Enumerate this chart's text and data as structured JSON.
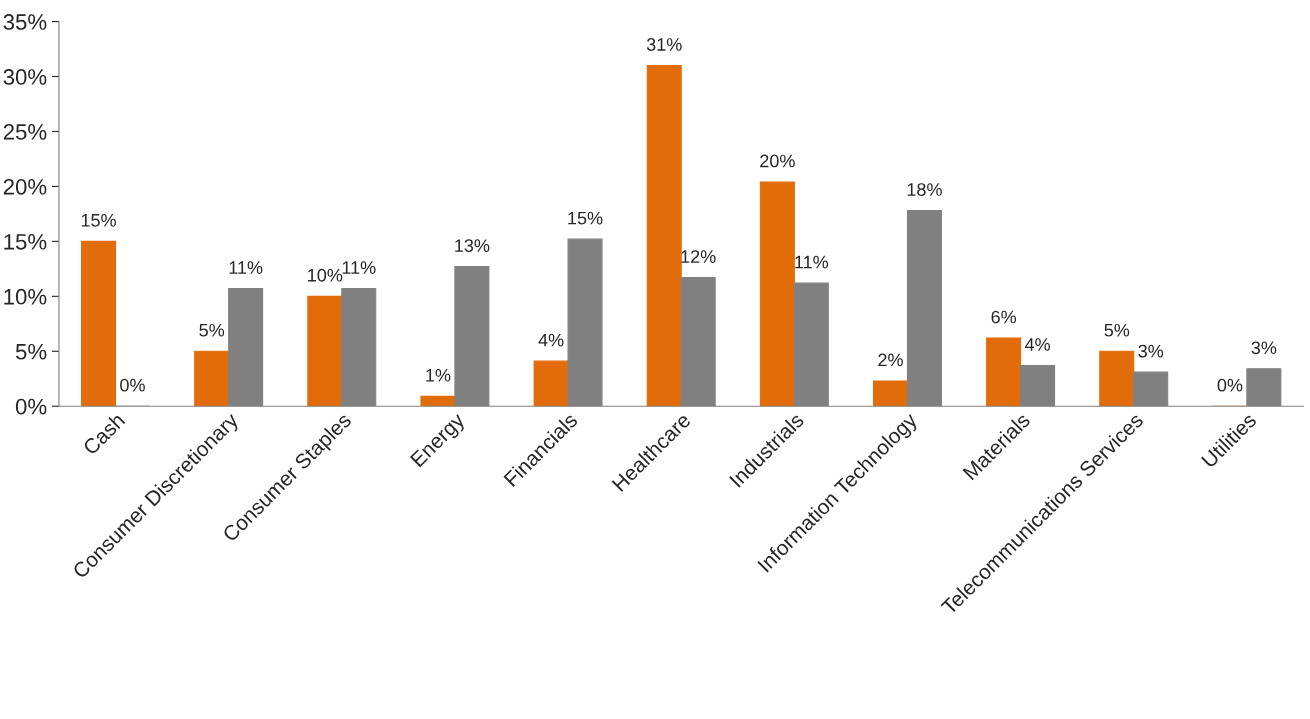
{
  "chart_data": {
    "type": "bar",
    "categories": [
      "Cash",
      "Consumer Discretionary",
      "Consumer Staples",
      "Energy",
      "Financials",
      "Healthcare",
      "Industrials",
      "Information Technology",
      "Materials",
      "Telecommunications Services",
      "Utilities"
    ],
    "series": [
      {
        "color": "#e36c0a",
        "values": [
          15.0,
          5.0,
          10.0,
          0.9,
          4.1,
          31.0,
          20.4,
          2.3,
          6.2,
          5.0,
          0
        ],
        "value_labels": [
          "15%",
          "5%",
          "10%",
          "1%",
          "4%",
          "31%",
          "20%",
          "2%",
          "6%",
          "5%",
          "0%"
        ]
      },
      {
        "color": "#808080",
        "values": [
          0,
          10.7,
          10.7,
          12.7,
          15.2,
          11.7,
          11.2,
          17.8,
          3.7,
          3.1,
          3.4
        ],
        "value_labels": [
          "0%",
          "11%",
          "11%",
          "13%",
          "15%",
          "12%",
          "11%",
          "18%",
          "4%",
          "3%",
          "3%"
        ]
      }
    ],
    "ylim": [
      0,
      35
    ],
    "yticks": [
      {
        "value": 0,
        "label": "0%"
      },
      {
        "value": 5,
        "label": "5%"
      },
      {
        "value": 10,
        "label": "10%"
      },
      {
        "value": 15,
        "label": "15%"
      },
      {
        "value": 20,
        "label": "20%"
      },
      {
        "value": 25,
        "label": "25%"
      },
      {
        "value": 30,
        "label": "30%"
      },
      {
        "value": 35,
        "label": "35%"
      }
    ],
    "grid": false
  }
}
